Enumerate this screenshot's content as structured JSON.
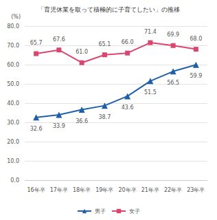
{
  "chart_data": {
    "type": "line",
    "title": "「育児休業を取って積極的に子育てしたい」の推移",
    "ylabel": "(%)",
    "categories": [
      "16年卒",
      "17年卒",
      "18年卒",
      "19年卒",
      "20年卒",
      "21年卒",
      "22年卒",
      "23年卒"
    ],
    "series": [
      {
        "name": "男子",
        "color": "#1f5fa8",
        "marker": "triangle",
        "line_style": "solid",
        "values": [
          32.6,
          33.9,
          36.6,
          38.7,
          43.6,
          51.5,
          56.5,
          59.9
        ],
        "value_labels": [
          "32.6",
          "33.9",
          "36.6",
          "38.7",
          "43.6",
          "51.5",
          "56.5",
          "59.9"
        ]
      },
      {
        "name": "女子",
        "color": "#d9466f",
        "marker": "square",
        "line_style": "solid",
        "values": [
          65.7,
          67.6,
          61.0,
          65.1,
          66.0,
          71.4,
          69.9,
          68.0
        ],
        "value_labels": [
          "65.7",
          "67.6",
          "61.0",
          "65.1",
          "66.0",
          "71.4",
          "69.9",
          "68.0"
        ]
      }
    ],
    "ylim": [
      0,
      80
    ],
    "yticks": [
      {
        "value": 0,
        "label": "0.0"
      },
      {
        "value": 10,
        "label": "10.0"
      },
      {
        "value": 20,
        "label": "20.0"
      },
      {
        "value": 30,
        "label": "30.0"
      },
      {
        "value": 40,
        "label": "40.0"
      },
      {
        "value": 50,
        "label": "50.0"
      },
      {
        "value": 60,
        "label": "60.0"
      },
      {
        "value": 70,
        "label": "70.0"
      },
      {
        "value": 80,
        "label": "80.0"
      }
    ],
    "grid": true,
    "legend": "bottom",
    "data_labels": true
  }
}
